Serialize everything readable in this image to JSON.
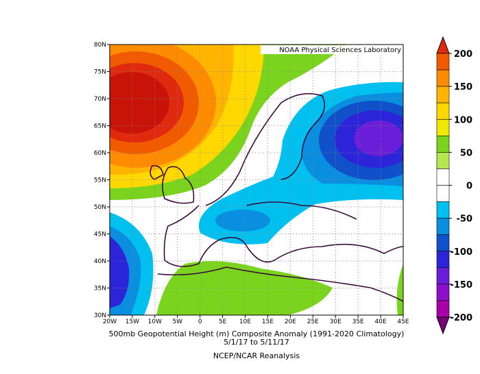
{
  "header": {
    "credit": "NOAA Physical Sciences Laboratory"
  },
  "map": {
    "lat_labels": [
      "80N",
      "75N",
      "70N",
      "65N",
      "60N",
      "55N",
      "50N",
      "45N",
      "40N",
      "35N",
      "30N"
    ],
    "lon_labels": [
      "20W",
      "15W",
      "10W",
      "5W",
      "0",
      "5E",
      "10E",
      "15E",
      "20E",
      "25E",
      "30E",
      "35E",
      "40E",
      "45E"
    ]
  },
  "colorbar": {
    "ticks": [
      200,
      150,
      100,
      50,
      0,
      -50,
      -100,
      -150,
      -200
    ],
    "colors": [
      "#e02a10",
      "#f25a00",
      "#ff8c00",
      "#ffb400",
      "#ffd800",
      "#f0e800",
      "#7ad41e",
      "#b4e650",
      "#ffffff",
      "#ffffff",
      "#00c0f0",
      "#0a8ee0",
      "#1050c8",
      "#2c24d8",
      "#6a1ed8",
      "#8c10c8",
      "#a800a8",
      "#7a0078"
    ]
  },
  "footer": {
    "line1": "500mb Geopotential Height (m) Composite Anomaly (1991-2020 Climatology)",
    "line2": "5/1/17  to 5/11/17",
    "line3": "NCEP/NCAR Reanalysis"
  }
}
